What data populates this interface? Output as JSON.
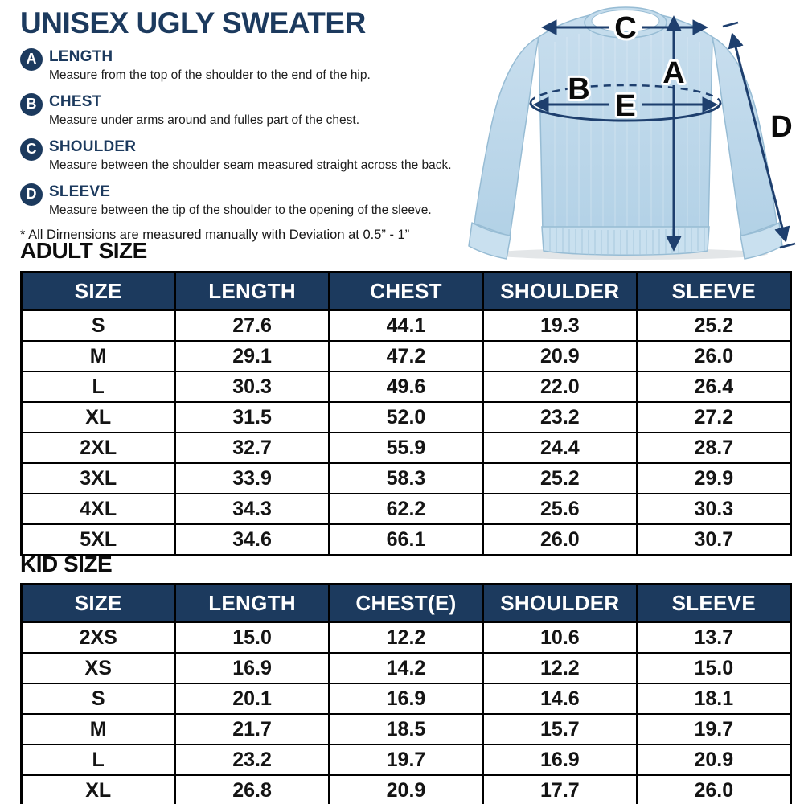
{
  "title": "UNISEX UGLY SWEATER",
  "measurements": [
    {
      "letter": "A",
      "name": "LENGTH",
      "description": "Measure from the top of the shoulder to the end of the hip."
    },
    {
      "letter": "B",
      "name": "CHEST",
      "description": "Measure under arms around and fulles part of the chest."
    },
    {
      "letter": "C",
      "name": "SHOULDER",
      "description": "Measure between the shoulder seam measured straight across the back."
    },
    {
      "letter": "D",
      "name": "SLEEVE",
      "description": "Measure between the tip of the shoulder to the opening of the sleeve."
    }
  ],
  "note": "* All Dimensions are measured manually with Deviation at 0.5” - 1”",
  "diagram": {
    "a": "A",
    "b": "B",
    "c": "C",
    "d": "D",
    "e": "E"
  },
  "adult": {
    "heading": "ADULT SIZE",
    "columns": [
      "SIZE",
      "LENGTH",
      "CHEST",
      "SHOULDER",
      "SLEEVE"
    ],
    "rows": [
      [
        "S",
        "27.6",
        "44.1",
        "19.3",
        "25.2"
      ],
      [
        "M",
        "29.1",
        "47.2",
        "20.9",
        "26.0"
      ],
      [
        "L",
        "30.3",
        "49.6",
        "22.0",
        "26.4"
      ],
      [
        "XL",
        "31.5",
        "52.0",
        "23.2",
        "27.2"
      ],
      [
        "2XL",
        "32.7",
        "55.9",
        "24.4",
        "28.7"
      ],
      [
        "3XL",
        "33.9",
        "58.3",
        "25.2",
        "29.9"
      ],
      [
        "4XL",
        "34.3",
        "62.2",
        "25.6",
        "30.3"
      ],
      [
        "5XL",
        "34.6",
        "66.1",
        "26.0",
        "30.7"
      ]
    ]
  },
  "kid": {
    "heading": "KID SIZE",
    "columns": [
      "SIZE",
      "LENGTH",
      "CHEST(E)",
      "SHOULDER",
      "SLEEVE"
    ],
    "rows": [
      [
        "2XS",
        "15.0",
        "12.2",
        "10.6",
        "13.7"
      ],
      [
        "XS",
        "16.9",
        "14.2",
        "12.2",
        "15.0"
      ],
      [
        "S",
        "20.1",
        "16.9",
        "14.6",
        "18.1"
      ],
      [
        "M",
        "21.7",
        "18.5",
        "15.7",
        "19.7"
      ],
      [
        "L",
        "23.2",
        "19.7",
        "16.9",
        "20.9"
      ],
      [
        "XL",
        "26.8",
        "20.9",
        "17.7",
        "26.0"
      ]
    ]
  },
  "colors": {
    "navy": "#1c3a5e",
    "arrow_navy": "#1e3f6e",
    "sweater_blue": "#bed9eb",
    "table_border": "#000000"
  }
}
